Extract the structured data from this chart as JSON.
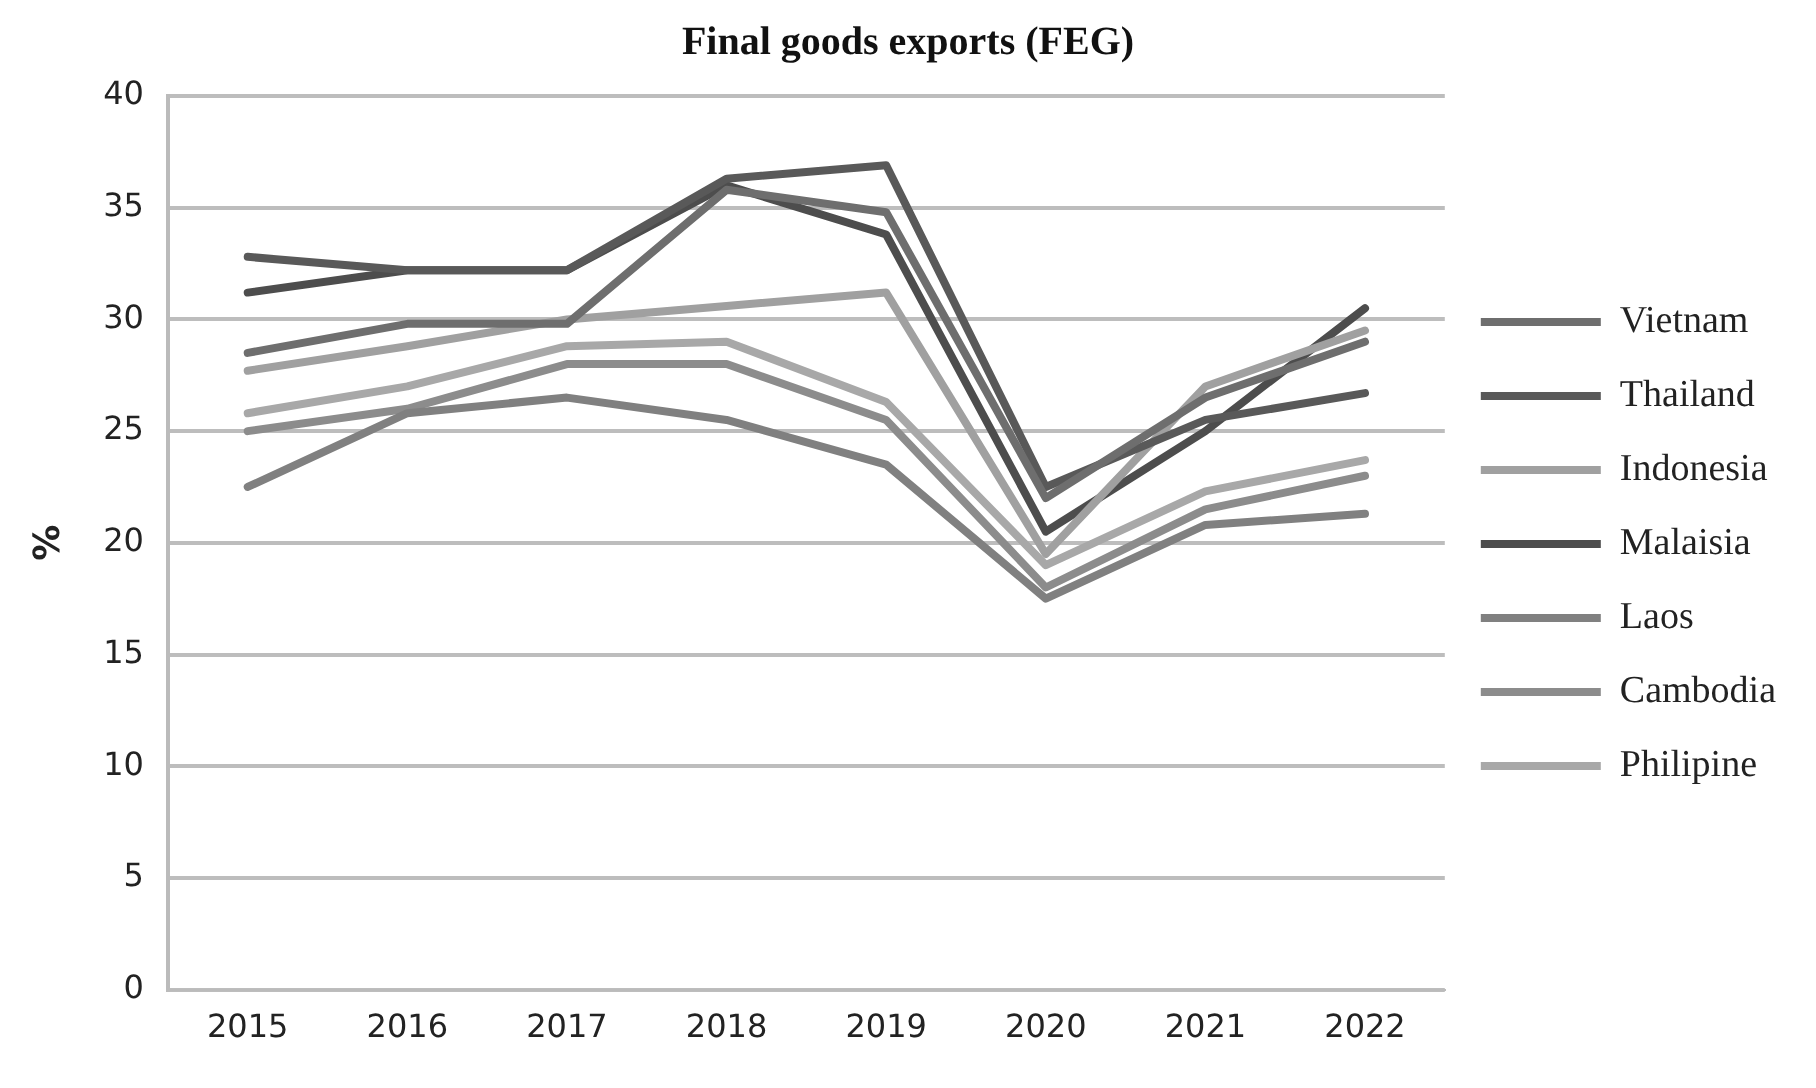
{
  "chart_data": {
    "type": "line",
    "title": "Final goods exports (FEG)",
    "ylabel": "%",
    "categories": [
      "2015",
      "2016",
      "2017",
      "2018",
      "2019",
      "2020",
      "2021",
      "2022"
    ],
    "series": [
      {
        "name": "Vietnam",
        "color": "#6e6e6e",
        "values": [
          28.5,
          29.8,
          29.8,
          35.8,
          34.8,
          22,
          26.5,
          29
        ]
      },
      {
        "name": "Thailand",
        "color": "#595959",
        "values": [
          32.8,
          32.2,
          32.2,
          36.3,
          36.9,
          22.5,
          25.5,
          26.7
        ]
      },
      {
        "name": "Indonesia",
        "color": "#a0a0a0",
        "values": [
          27.7,
          28.8,
          30,
          30.6,
          31.2,
          19.5,
          27,
          29.5
        ]
      },
      {
        "name": "Malaisia",
        "color": "#4d4d4d",
        "values": [
          31.2,
          32.2,
          32.2,
          36,
          33.8,
          20.5,
          25,
          30.5
        ]
      },
      {
        "name": "Laos",
        "color": "#808080",
        "values": [
          22.5,
          25.8,
          26.5,
          25.5,
          23.5,
          17.5,
          20.8,
          21.3
        ]
      },
      {
        "name": "Cambodia",
        "color": "#8c8c8c",
        "values": [
          25,
          26,
          28,
          28,
          25.5,
          18,
          21.5,
          23
        ]
      },
      {
        "name": "Philipine",
        "color": "#a8a8a8",
        "values": [
          25.8,
          27,
          28.8,
          29,
          26.3,
          19,
          22.3,
          23.7
        ]
      }
    ],
    "ylim": [
      0,
      40
    ],
    "yticks": [
      0,
      5,
      10,
      15,
      20,
      25,
      30,
      35,
      40
    ],
    "grid": "y",
    "legend": "right",
    "marker": "none",
    "line_style": "solid"
  }
}
